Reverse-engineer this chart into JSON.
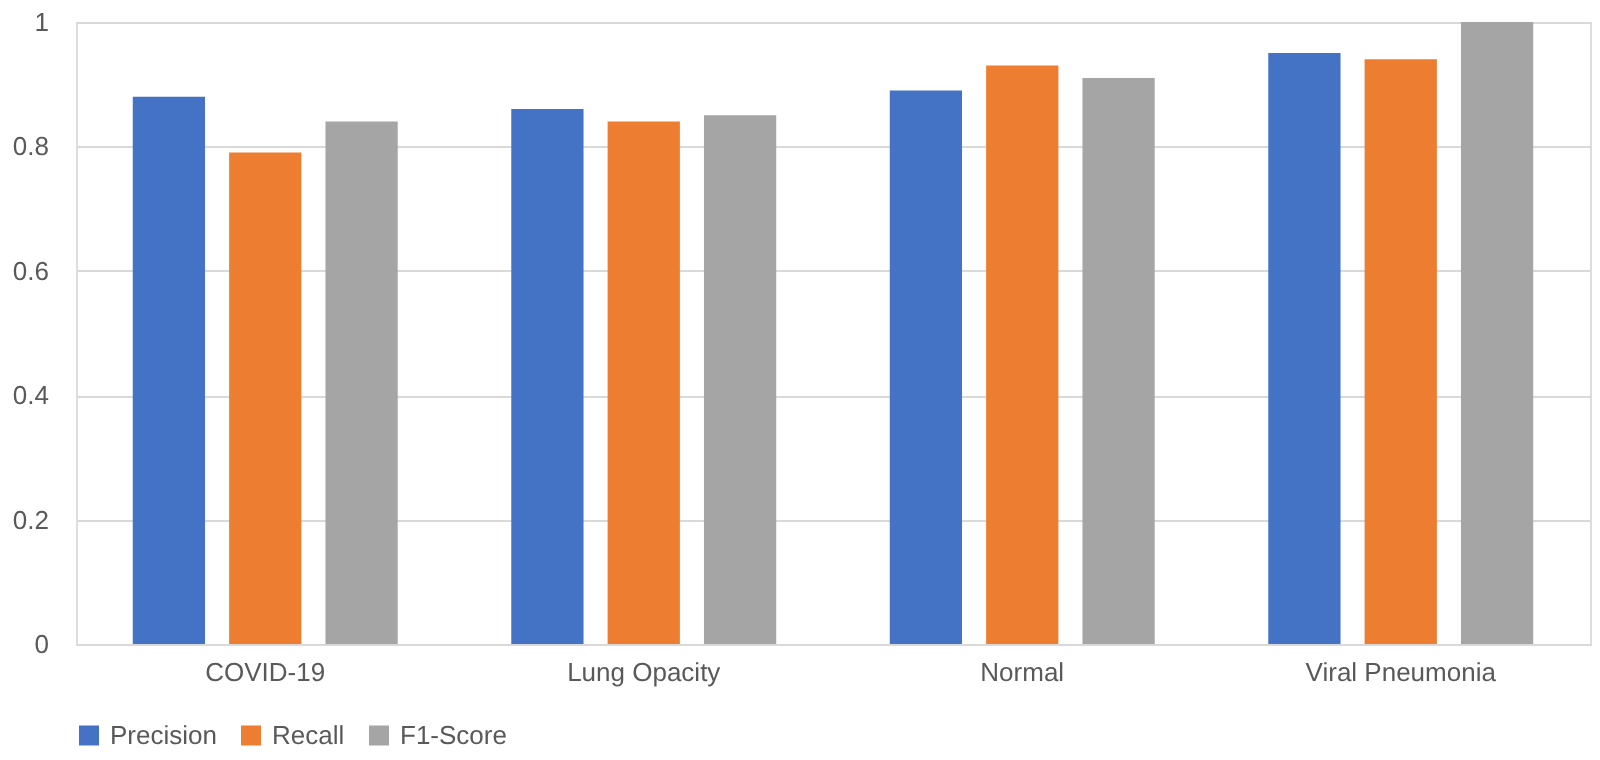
{
  "chart_data": {
    "type": "bar",
    "categories": [
      "COVID-19",
      "Lung Opacity",
      "Normal",
      "Viral Pneumonia"
    ],
    "series": [
      {
        "name": "Precision",
        "color": "#4472c4",
        "values": [
          0.88,
          0.86,
          0.89,
          0.95
        ]
      },
      {
        "name": "Recall",
        "color": "#ed7d31",
        "values": [
          0.79,
          0.84,
          0.93,
          0.94
        ]
      },
      {
        "name": "F1-Score",
        "color": "#a5a5a5",
        "values": [
          0.84,
          0.85,
          0.91,
          1.0
        ]
      }
    ],
    "ylim": [
      0,
      1
    ],
    "yticks": [
      0,
      0.2,
      0.4,
      0.6,
      0.8,
      1
    ],
    "grid": "y",
    "legend": "bottom"
  }
}
